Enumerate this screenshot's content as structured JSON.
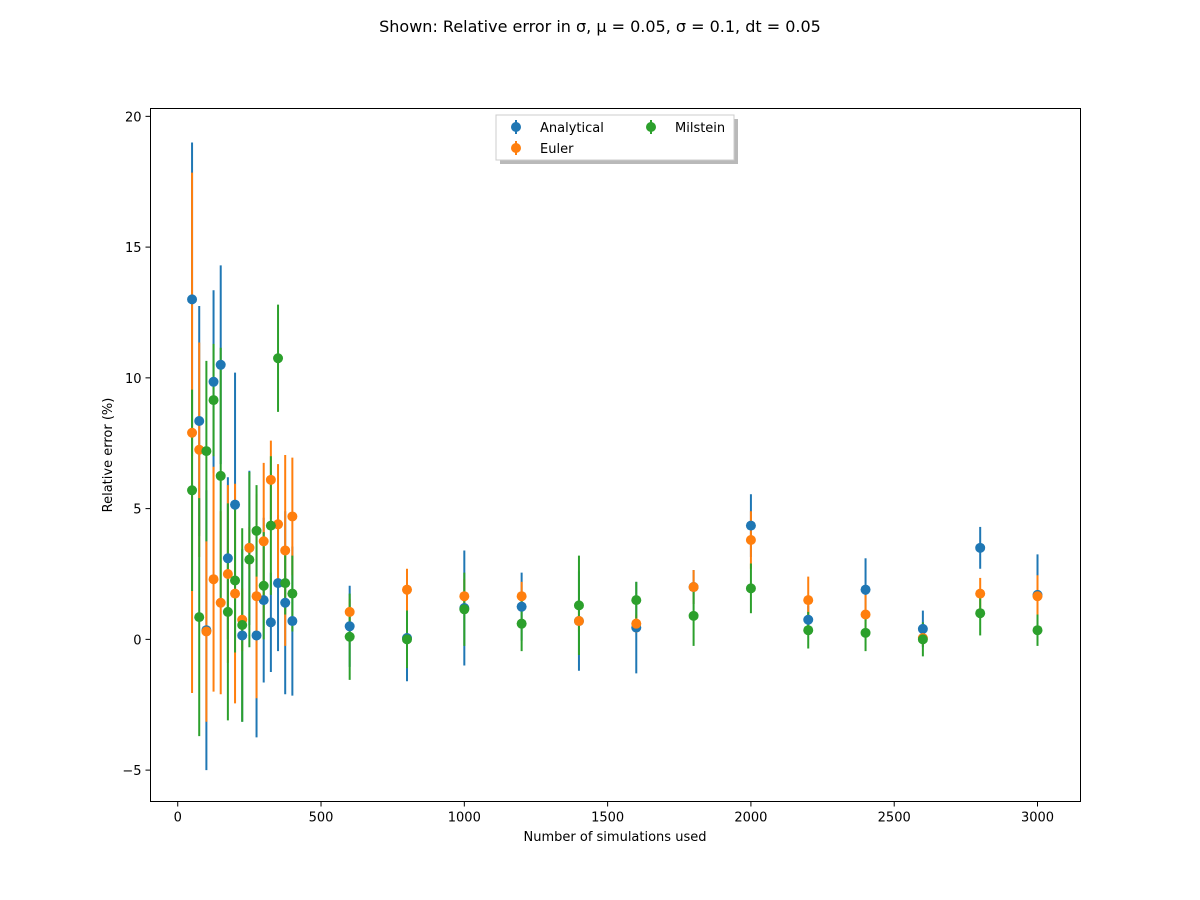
{
  "chart_data": {
    "type": "scatter",
    "title": "Shown: Relative error in σ, μ = 0.05, σ = 0.1, dt = 0.05",
    "xlabel": "Number of simulations used",
    "ylabel": "Relative error (%)",
    "xlim": [
      -95,
      3150
    ],
    "ylim": [
      -6.2,
      20.3
    ],
    "xticks": [
      0,
      500,
      1000,
      1500,
      2000,
      2500,
      3000
    ],
    "xtick_labels": [
      "0",
      "500",
      "1000",
      "1500",
      "2000",
      "2500",
      "3000"
    ],
    "yticks": [
      -5,
      0,
      5,
      10,
      15,
      20
    ],
    "ytick_labels": [
      "−5",
      "0",
      "5",
      "10",
      "15",
      "20"
    ],
    "grid": false,
    "legend_position": "top-center",
    "series": [
      {
        "name": "Analytical",
        "color": "#1f77b4",
        "points": [
          {
            "x": 50,
            "y": 13.0,
            "err": 6.0
          },
          {
            "x": 75,
            "y": 8.35,
            "err": 4.4
          },
          {
            "x": 100,
            "y": 0.35,
            "err": 5.35
          },
          {
            "x": 125,
            "y": 9.85,
            "err": 3.5
          },
          {
            "x": 150,
            "y": 10.5,
            "err": 3.8
          },
          {
            "x": 175,
            "y": 3.1,
            "err": 3.1
          },
          {
            "x": 200,
            "y": 5.15,
            "err": 5.05
          },
          {
            "x": 225,
            "y": 0.15,
            "err": 3.3
          },
          {
            "x": 250,
            "y": 3.5,
            "err": 2.95
          },
          {
            "x": 275,
            "y": 0.15,
            "err": 3.9
          },
          {
            "x": 300,
            "y": 1.5,
            "err": 3.15
          },
          {
            "x": 325,
            "y": 0.65,
            "err": 1.9
          },
          {
            "x": 350,
            "y": 2.15,
            "err": 2.6
          },
          {
            "x": 375,
            "y": 1.4,
            "err": 3.5
          },
          {
            "x": 400,
            "y": 0.7,
            "err": 2.85
          },
          {
            "x": 600,
            "y": 0.5,
            "err": 1.55
          },
          {
            "x": 800,
            "y": 0.05,
            "err": 1.65
          },
          {
            "x": 1000,
            "y": 1.2,
            "err": 2.2
          },
          {
            "x": 1200,
            "y": 1.25,
            "err": 1.3
          },
          {
            "x": 1400,
            "y": 0.7,
            "err": 1.9
          },
          {
            "x": 1600,
            "y": 0.45,
            "err": 1.75
          },
          {
            "x": 1800,
            "y": 2.0,
            "err": 0.65
          },
          {
            "x": 2000,
            "y": 4.35,
            "err": 1.2
          },
          {
            "x": 2200,
            "y": 0.75,
            "err": 0.55
          },
          {
            "x": 2400,
            "y": 1.9,
            "err": 1.2
          },
          {
            "x": 2600,
            "y": 0.4,
            "err": 0.7
          },
          {
            "x": 2800,
            "y": 3.5,
            "err": 0.8
          },
          {
            "x": 3000,
            "y": 1.7,
            "err": 1.55
          }
        ]
      },
      {
        "name": "Euler",
        "color": "#ff7f0e",
        "points": [
          {
            "x": 50,
            "y": 7.9,
            "err": 9.95
          },
          {
            "x": 75,
            "y": 7.25,
            "err": 4.1
          },
          {
            "x": 100,
            "y": 0.3,
            "err": 3.45
          },
          {
            "x": 125,
            "y": 2.3,
            "err": 4.3
          },
          {
            "x": 150,
            "y": 1.4,
            "err": 3.5
          },
          {
            "x": 175,
            "y": 2.5,
            "err": 3.4
          },
          {
            "x": 200,
            "y": 1.75,
            "err": 4.2
          },
          {
            "x": 225,
            "y": 0.75,
            "err": 1.2
          },
          {
            "x": 250,
            "y": 3.5,
            "err": 0.8
          },
          {
            "x": 275,
            "y": 1.65,
            "err": 3.9
          },
          {
            "x": 300,
            "y": 3.75,
            "err": 3.0
          },
          {
            "x": 325,
            "y": 6.1,
            "err": 1.5
          },
          {
            "x": 350,
            "y": 4.4,
            "err": 2.3
          },
          {
            "x": 375,
            "y": 3.4,
            "err": 3.65
          },
          {
            "x": 400,
            "y": 4.7,
            "err": 2.25
          },
          {
            "x": 600,
            "y": 1.05,
            "err": 0.5
          },
          {
            "x": 800,
            "y": 1.9,
            "err": 0.8
          },
          {
            "x": 1000,
            "y": 1.65,
            "err": 0.65
          },
          {
            "x": 1200,
            "y": 1.65,
            "err": 0.55
          },
          {
            "x": 1400,
            "y": 0.7,
            "err": 0.4
          },
          {
            "x": 1600,
            "y": 0.6,
            "err": 0.35
          },
          {
            "x": 1800,
            "y": 2.0,
            "err": 0.65
          },
          {
            "x": 2000,
            "y": 3.8,
            "err": 1.1
          },
          {
            "x": 2200,
            "y": 1.5,
            "err": 0.9
          },
          {
            "x": 2400,
            "y": 0.95,
            "err": 0.75
          },
          {
            "x": 2600,
            "y": 0.05,
            "err": 0.3
          },
          {
            "x": 2800,
            "y": 1.75,
            "err": 0.6
          },
          {
            "x": 3000,
            "y": 1.65,
            "err": 0.8
          }
        ]
      },
      {
        "name": "Milstein",
        "color": "#2ca02c",
        "points": [
          {
            "x": 50,
            "y": 5.7,
            "err": 3.85
          },
          {
            "x": 75,
            "y": 0.85,
            "err": 4.55
          },
          {
            "x": 100,
            "y": 7.2,
            "err": 3.45
          },
          {
            "x": 125,
            "y": 9.15,
            "err": 2.15
          },
          {
            "x": 150,
            "y": 6.25,
            "err": 4.9
          },
          {
            "x": 175,
            "y": 1.05,
            "err": 4.15
          },
          {
            "x": 200,
            "y": 2.25,
            "err": 2.75
          },
          {
            "x": 225,
            "y": 0.55,
            "err": 3.7
          },
          {
            "x": 250,
            "y": 3.05,
            "err": 3.35
          },
          {
            "x": 275,
            "y": 4.15,
            "err": 1.75
          },
          {
            "x": 300,
            "y": 2.05,
            "err": 2.05
          },
          {
            "x": 325,
            "y": 4.35,
            "err": 2.65
          },
          {
            "x": 350,
            "y": 10.75,
            "err": 2.05
          },
          {
            "x": 375,
            "y": 2.15,
            "err": 1.2
          },
          {
            "x": 400,
            "y": 1.75,
            "err": 1.45
          },
          {
            "x": 600,
            "y": 0.1,
            "err": 1.65
          },
          {
            "x": 800,
            "y": 0.0,
            "err": 1.1
          },
          {
            "x": 1000,
            "y": 1.15,
            "err": 1.4
          },
          {
            "x": 1200,
            "y": 0.6,
            "err": 1.05
          },
          {
            "x": 1400,
            "y": 1.3,
            "err": 1.9
          },
          {
            "x": 1600,
            "y": 1.5,
            "err": 0.7
          },
          {
            "x": 1800,
            "y": 0.9,
            "err": 1.15
          },
          {
            "x": 2000,
            "y": 1.95,
            "err": 0.95
          },
          {
            "x": 2200,
            "y": 0.35,
            "err": 0.7
          },
          {
            "x": 2400,
            "y": 0.25,
            "err": 0.7
          },
          {
            "x": 2600,
            "y": 0.0,
            "err": 0.65
          },
          {
            "x": 2800,
            "y": 1.0,
            "err": 0.85
          },
          {
            "x": 3000,
            "y": 0.35,
            "err": 0.6
          }
        ]
      }
    ]
  }
}
